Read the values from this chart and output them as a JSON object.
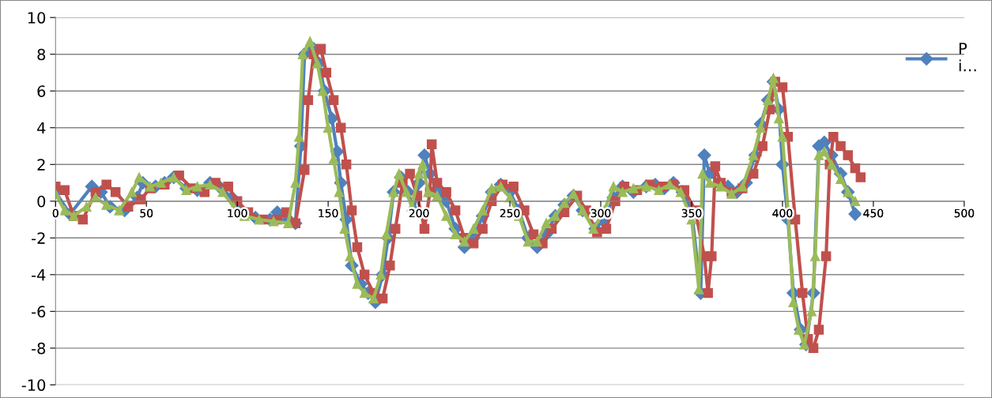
{
  "chart_data": {
    "type": "line",
    "xlim": [
      0,
      500
    ],
    "xticks": [
      0,
      50,
      100,
      150,
      200,
      250,
      300,
      350,
      400,
      450,
      500
    ],
    "ylim": [
      -10,
      10
    ],
    "yticks": [
      -10,
      -8,
      -6,
      -4,
      -2,
      0,
      2,
      4,
      6,
      8,
      10
    ],
    "grid": "y",
    "legend": "top right",
    "line_style": "solid",
    "series": [
      {
        "name": "P\ni…",
        "color": "#4f81bd",
        "marker": "diamond",
        "x": [
          0,
          8,
          20,
          25,
          30,
          38,
          45,
          48,
          55,
          60,
          65,
          72,
          78,
          85,
          90,
          97,
          102,
          110,
          118,
          122,
          128,
          132,
          135,
          137,
          142,
          145,
          148,
          152,
          155,
          157,
          160,
          163,
          168,
          172,
          176,
          180,
          183,
          186,
          190,
          194,
          197,
          200,
          203,
          206,
          210,
          215,
          220,
          225,
          230,
          235,
          240,
          245,
          250,
          255,
          260,
          265,
          270,
          275,
          280,
          285,
          290,
          297,
          302,
          307,
          312,
          318,
          325,
          330,
          335,
          340,
          345,
          350,
          355,
          357,
          360,
          365,
          370,
          375,
          380,
          385,
          388,
          392,
          395,
          398,
          400,
          403,
          406,
          410,
          413,
          417,
          420,
          423,
          427,
          432,
          436,
          440
        ],
        "values": [
          0.5,
          -0.7,
          0.8,
          0.5,
          -0.3,
          -0.5,
          0.2,
          1.0,
          0.8,
          1.0,
          1.3,
          0.7,
          0.6,
          1.0,
          0.8,
          0.2,
          -0.5,
          -0.9,
          -1.0,
          -0.6,
          -1.0,
          -1.2,
          3.0,
          8.0,
          8.3,
          7.5,
          6.0,
          4.5,
          2.7,
          1.0,
          -1.0,
          -3.5,
          -4.5,
          -5.0,
          -5.5,
          -4.0,
          -2.0,
          0.5,
          1.3,
          0.5,
          -0.5,
          1.0,
          2.5,
          1.5,
          0.5,
          0.0,
          -1.5,
          -2.5,
          -2.0,
          -0.8,
          0.5,
          0.9,
          0.5,
          -0.5,
          -2.0,
          -2.5,
          -1.8,
          -0.8,
          -0.2,
          0.3,
          -0.5,
          -1.5,
          -1.0,
          0.2,
          0.8,
          0.5,
          0.8,
          0.9,
          0.7,
          1.0,
          0.5,
          -0.5,
          -5.0,
          2.5,
          1.5,
          1.0,
          0.8,
          0.5,
          1.0,
          2.5,
          4.2,
          5.5,
          6.5,
          5.0,
          2.0,
          -1.0,
          -5.0,
          -7.0,
          -7.8,
          -5.0,
          3.0,
          3.2,
          2.5,
          1.5,
          0.5,
          -0.7
        ]
      },
      {
        "color": "#c0504d",
        "marker": "square",
        "x": [
          0,
          5,
          10,
          15,
          22,
          28,
          33,
          40,
          47,
          52,
          60,
          68,
          75,
          82,
          88,
          95,
          100,
          106,
          114,
          122,
          127,
          132,
          137,
          139,
          142,
          146,
          149,
          153,
          157,
          160,
          163,
          166,
          170,
          175,
          180,
          184,
          187,
          191,
          195,
          199,
          203,
          206,
          207,
          210,
          215,
          220,
          225,
          230,
          235,
          240,
          246,
          252,
          258,
          263,
          268,
          273,
          280,
          287,
          292,
          298,
          303,
          308,
          313,
          320,
          327,
          334,
          340,
          346,
          352,
          357,
          359,
          361,
          363,
          366,
          372,
          378,
          384,
          389,
          393,
          396,
          400,
          403,
          407,
          411,
          414,
          417,
          420,
          424,
          426,
          428,
          432,
          436,
          440,
          443
        ],
        "values": [
          0.8,
          0.6,
          -0.8,
          -1.0,
          0.5,
          0.9,
          0.5,
          -0.3,
          0.1,
          0.7,
          0.9,
          1.4,
          0.7,
          0.5,
          1.0,
          0.8,
          0.0,
          -0.6,
          -1.0,
          -1.0,
          -0.6,
          -1.2,
          1.7,
          5.5,
          8.0,
          8.3,
          7.0,
          5.5,
          4.0,
          2.0,
          -0.5,
          -2.5,
          -4.0,
          -5.0,
          -5.3,
          -3.5,
          -1.5,
          1.0,
          1.5,
          0.3,
          -1.5,
          0.5,
          3.1,
          1.0,
          0.5,
          -0.5,
          -2.0,
          -2.3,
          -1.5,
          0.0,
          0.9,
          0.8,
          -0.5,
          -1.8,
          -2.3,
          -1.5,
          -0.6,
          0.3,
          -0.5,
          -1.7,
          -1.5,
          0.0,
          0.8,
          0.6,
          0.9,
          0.8,
          0.9,
          0.6,
          -0.5,
          -3.0,
          -5.0,
          -3.0,
          1.9,
          1.0,
          0.5,
          0.7,
          1.5,
          3.0,
          5.0,
          6.5,
          6.2,
          3.5,
          -1.0,
          -5.0,
          -7.5,
          -8.0,
          -7.0,
          -3.0,
          2.0,
          3.5,
          3.0,
          2.5,
          1.8,
          1.3
        ]
      },
      {
        "color": "#9bbb59",
        "marker": "triangle",
        "x": [
          0,
          5,
          10,
          17,
          22,
          28,
          35,
          42,
          46,
          52,
          58,
          65,
          72,
          78,
          85,
          92,
          98,
          104,
          112,
          120,
          128,
          132,
          134,
          136,
          140,
          144,
          147,
          150,
          153,
          156,
          159,
          162,
          166,
          170,
          175,
          179,
          182,
          186,
          189,
          193,
          196,
          200,
          202,
          205,
          210,
          215,
          220,
          225,
          230,
          235,
          240,
          245,
          250,
          255,
          260,
          265,
          270,
          275,
          280,
          285,
          290,
          296,
          302,
          307,
          312,
          318,
          325,
          332,
          338,
          344,
          350,
          354,
          356,
          360,
          366,
          372,
          378,
          384,
          388,
          392,
          395,
          398,
          400,
          403,
          406,
          409,
          412,
          416,
          418,
          420,
          423,
          427,
          432,
          436,
          440
        ],
        "values": [
          0.4,
          -0.5,
          -0.8,
          -0.3,
          0.2,
          -0.2,
          -0.5,
          0.5,
          1.3,
          0.8,
          1.0,
          1.3,
          0.6,
          0.8,
          0.9,
          0.5,
          -0.3,
          -0.8,
          -1.0,
          -1.1,
          -1.2,
          1.0,
          3.5,
          8.0,
          8.7,
          7.5,
          6.0,
          4.0,
          2.3,
          0.5,
          -1.5,
          -3.0,
          -4.5,
          -5.0,
          -5.3,
          -4.0,
          -1.8,
          0.5,
          1.5,
          0.5,
          -0.3,
          1.5,
          2.0,
          0.5,
          0.3,
          -0.8,
          -1.8,
          -2.2,
          -1.5,
          -0.5,
          0.7,
          0.8,
          0.2,
          -0.8,
          -2.2,
          -2.2,
          -1.2,
          -0.8,
          -0.1,
          0.4,
          -0.5,
          -1.5,
          -0.5,
          0.8,
          0.5,
          0.7,
          0.8,
          0.6,
          0.9,
          0.5,
          -1.0,
          -4.8,
          1.5,
          1.0,
          0.8,
          0.4,
          0.8,
          2.5,
          4.0,
          5.5,
          6.7,
          4.5,
          3.5,
          -0.5,
          -5.5,
          -7.0,
          -7.8,
          -6.0,
          -3.0,
          2.5,
          2.7,
          2.0,
          1.2,
          0.5,
          0.0
        ]
      }
    ]
  }
}
